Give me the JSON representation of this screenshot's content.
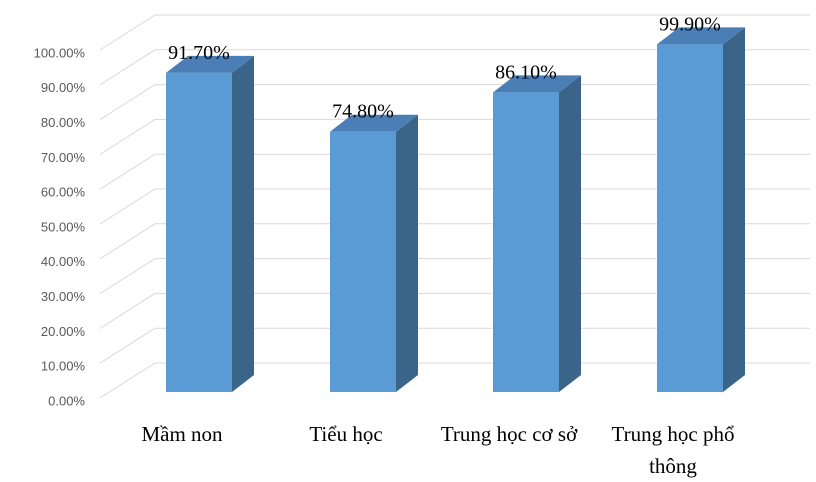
{
  "chart_data": {
    "type": "bar3d",
    "categories": [
      "Mầm non",
      "Tiểu học",
      "Trung học cơ sở",
      "Trung học phổ thông"
    ],
    "values": [
      91.7,
      74.8,
      86.1,
      99.9
    ],
    "value_labels": [
      "91.70%",
      "74.80%",
      "86.10%",
      "99.90%"
    ],
    "color": "#5b9bd5",
    "ylim": [
      0,
      100
    ],
    "yticks": [
      {
        "value": 0,
        "label": "0.00%"
      },
      {
        "value": 10,
        "label": "10.00%"
      },
      {
        "value": 20,
        "label": "20.00%"
      },
      {
        "value": 30,
        "label": "30.00%"
      },
      {
        "value": 40,
        "label": "40.00%"
      },
      {
        "value": 50,
        "label": "50.00%"
      },
      {
        "value": 60,
        "label": "60.00%"
      },
      {
        "value": 70,
        "label": "70.00%"
      },
      {
        "value": 80,
        "label": "80.00%"
      },
      {
        "value": 90,
        "label": "90.00%"
      },
      {
        "value": 100,
        "label": "100.00%"
      }
    ],
    "grid": true
  }
}
